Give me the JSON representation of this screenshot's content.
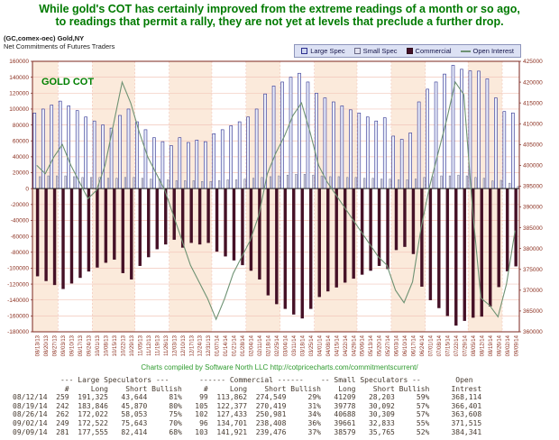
{
  "title": {
    "line1": "While gold's COT has certainly improved from the extreme readings of a month or so ago,",
    "line2": "to readings that permit a rally, they are not yet at levels that preclude a further drop."
  },
  "header": {
    "symbol": "(GC,comex-oec) Gold,NY",
    "subtitle": "Net Commitments of Futures Traders"
  },
  "chart_label": "GOLD COT",
  "legend": [
    {
      "label": "Large Spec",
      "swatch": "square",
      "fill": "#ccd4ee",
      "stroke": "#2c2f8f"
    },
    {
      "label": "Small Spec",
      "swatch": "square",
      "fill": "#e2e2f0",
      "stroke": "#6b6b88"
    },
    {
      "label": "Commercial",
      "swatch": "square",
      "fill": "#451026",
      "stroke": "#2d0a1a"
    },
    {
      "label": "Open Interest",
      "swatch": "line",
      "fill": "#6e9273",
      "stroke": "#6e9273"
    }
  ],
  "colors": {
    "title_green": "#007a00",
    "credit_green": "#2e9b2e",
    "frame_maroon": "#7b241c",
    "axis_text": "#8b2f1f",
    "grid_pink": "#f2c6ba",
    "stripe_peach": "#fbeadb",
    "large_spec_fill": "#e9edfa",
    "large_spec_stroke": "#2c2f8f",
    "small_spec_fill": "#dcdcee",
    "small_spec_stroke": "#6b6b88",
    "commercial_fill": "#451026",
    "open_interest_line": "#6e9273",
    "watermark_green": "#008000",
    "zero_line": "#222222"
  },
  "chart_data": {
    "type": "bar",
    "title": "GOLD COT - Net Commitments of Futures Traders",
    "x": [
      "08/13/13",
      "08/20/13",
      "08/27/13",
      "09/03/13",
      "09/10/13",
      "09/17/13",
      "09/24/13",
      "10/01/13",
      "10/08/13",
      "10/15/13",
      "10/22/13",
      "10/29/13",
      "11/05/13",
      "11/12/13",
      "11/19/13",
      "11/26/13",
      "12/03/13",
      "12/10/13",
      "12/17/13",
      "12/24/13",
      "12/31/13",
      "01/07/14",
      "01/14/14",
      "01/21/14",
      "01/28/14",
      "02/04/14",
      "02/11/14",
      "02/18/14",
      "02/25/14",
      "03/04/14",
      "03/11/14",
      "03/18/14",
      "03/25/14",
      "04/01/14",
      "04/08/14",
      "04/15/14",
      "04/22/14",
      "04/29/14",
      "05/06/14",
      "05/13/14",
      "05/20/14",
      "05/27/14",
      "06/03/14",
      "06/10/14",
      "06/17/14",
      "06/24/14",
      "07/01/14",
      "07/08/14",
      "07/15/14",
      "07/22/14",
      "07/29/14",
      "08/05/14",
      "08/12/14",
      "08/19/14",
      "08/26/14",
      "09/02/14",
      "09/09/14"
    ],
    "left_axis": {
      "min": -180000,
      "max": 160000,
      "tick": 20000
    },
    "right_axis": {
      "min": 360000,
      "max": 425000,
      "tick": 5000
    },
    "series": [
      {
        "name": "Large Spec",
        "axis": "left",
        "type": "bar",
        "values": [
          95000,
          100000,
          105000,
          110000,
          104000,
          98000,
          90000,
          85000,
          80000,
          76000,
          92000,
          100000,
          84000,
          74000,
          64000,
          59000,
          54000,
          64000,
          58000,
          61000,
          59000,
          69000,
          74000,
          79000,
          84000,
          90000,
          100000,
          119000,
          129000,
          134000,
          140000,
          145000,
          134000,
          120000,
          114000,
          109000,
          104000,
          99000,
          95000,
          90000,
          85000,
          89000,
          66000,
          62000,
          70000,
          109000,
          125000,
          134000,
          144000,
          155000,
          150000,
          148000,
          147681,
          137976,
          113969,
          96879,
          95141
        ]
      },
      {
        "name": "Small Spec",
        "axis": "left",
        "type": "bar",
        "values": [
          15000,
          16000,
          16000,
          16000,
          15000,
          14000,
          14000,
          14000,
          13000,
          13000,
          14000,
          14000,
          13000,
          12000,
          12000,
          11000,
          10000,
          10000,
          10000,
          9000,
          9000,
          10000,
          11000,
          11000,
          12000,
          13000,
          14000,
          15000,
          16000,
          17000,
          18000,
          18000,
          17000,
          16000,
          15000,
          15000,
          14000,
          14000,
          13000,
          13000,
          12000,
          12000,
          11000,
          11000,
          12000,
          14000,
          15000,
          16000,
          16000,
          17000,
          16000,
          14000,
          13006,
          9686,
          10379,
          6828,
          2814
        ]
      },
      {
        "name": "Commercial",
        "axis": "left",
        "type": "bar",
        "values": [
          -110000,
          -116000,
          -121000,
          -126000,
          -119000,
          -112000,
          -104000,
          -99000,
          -93000,
          -89000,
          -106000,
          -114000,
          -97000,
          -86000,
          -76000,
          -70000,
          -64000,
          -74000,
          -68000,
          -70000,
          -68000,
          -79000,
          -85000,
          -90000,
          -96000,
          -103000,
          -114000,
          -134000,
          -145000,
          -151000,
          -158000,
          -163000,
          -151000,
          -136000,
          -129000,
          -124000,
          -118000,
          -113000,
          -108000,
          -103000,
          -97000,
          -101000,
          -77000,
          -73000,
          -82000,
          -123000,
          -140000,
          -150000,
          -160000,
          -172000,
          -166000,
          -162000,
          -160687,
          -148042,
          -123548,
          -103707,
          -97555
        ]
      },
      {
        "name": "Open Interest",
        "axis": "right",
        "type": "line",
        "values": [
          400000,
          398000,
          402000,
          405000,
          400000,
          396000,
          392000,
          394000,
          400000,
          410000,
          420000,
          415000,
          408000,
          402000,
          398000,
          394000,
          388000,
          382000,
          376000,
          372000,
          368000,
          363000,
          368000,
          374000,
          378000,
          382000,
          388000,
          398000,
          403000,
          407000,
          412000,
          415000,
          408000,
          400000,
          396000,
          393000,
          390000,
          387000,
          384000,
          381000,
          378000,
          376000,
          370000,
          367000,
          372000,
          385000,
          395000,
          403000,
          411000,
          420000,
          417000,
          390000,
          368114,
          366401,
          363608,
          371515,
          384341
        ]
      }
    ]
  },
  "credit": {
    "text": "Charts compiled by Software North LLC",
    "url": "http://cotpricecharts.com/commitmentscurrent/"
  },
  "table": {
    "group_headers": [
      "--- Large Speculators ---",
      "------ Commercial ------",
      "-- Small Speculators --",
      "Open"
    ],
    "col_headers": [
      "",
      "#",
      "Long",
      "Short",
      "Bullish",
      "#",
      "Long",
      "Short",
      "Bullish",
      "Long",
      "Short",
      "Bullish",
      "Intrest"
    ],
    "rows": [
      [
        "08/12/14",
        "259",
        "191,325",
        "43,644",
        "81%",
        "99",
        "113,862",
        "274,549",
        "29%",
        "41209",
        "28,203",
        "59%",
        "368,114"
      ],
      [
        "08/19/14",
        "242",
        "183,846",
        "45,870",
        "80%",
        "105",
        "122,377",
        "270,419",
        "31%",
        "39778",
        "30,092",
        "57%",
        "366,401"
      ],
      [
        "08/26/14",
        "262",
        "172,022",
        "58,053",
        "75%",
        "102",
        "127,433",
        "250,981",
        "34%",
        "40688",
        "30,309",
        "57%",
        "363,608"
      ],
      [
        "09/02/14",
        "249",
        "172,522",
        "75,643",
        "70%",
        "96",
        "134,701",
        "238,408",
        "36%",
        "39661",
        "32,833",
        "55%",
        "371,515"
      ],
      [
        "09/09/14",
        "281",
        "177,555",
        "82,414",
        "68%",
        "103",
        "141,921",
        "239,476",
        "37%",
        "38579",
        "35,765",
        "52%",
        "384,341"
      ]
    ]
  }
}
